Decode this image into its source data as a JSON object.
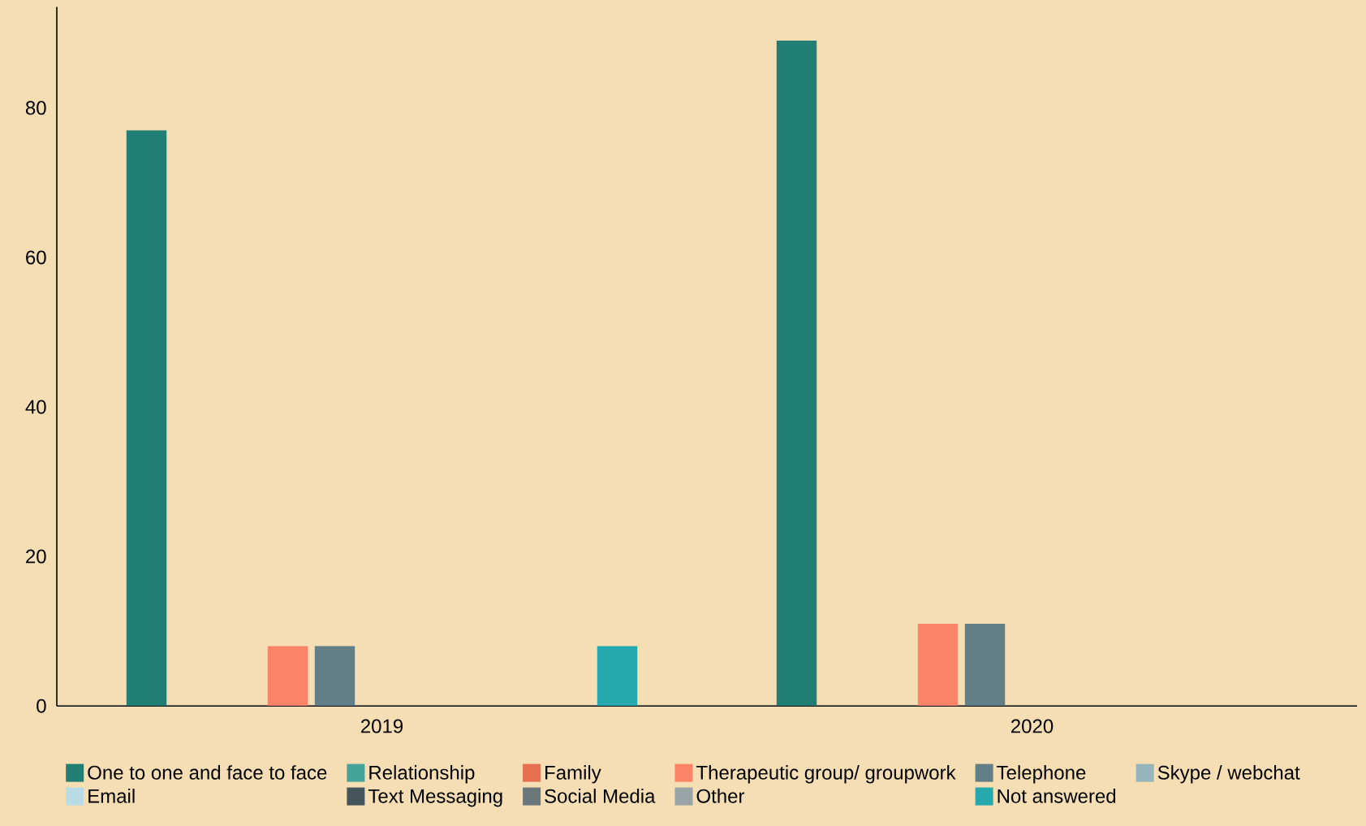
{
  "chart_data": {
    "type": "bar",
    "categories": [
      "2019",
      "2020"
    ],
    "series": [
      {
        "name": "One to one and face to face",
        "color": "#207e74",
        "values": [
          77,
          89
        ]
      },
      {
        "name": "Relationship",
        "color": "#45a39a",
        "values": [
          0,
          0
        ]
      },
      {
        "name": "Family",
        "color": "#e76f51",
        "values": [
          0,
          0
        ]
      },
      {
        "name": "Therapeutic group/ groupwork",
        "color": "#fb8468",
        "values": [
          8,
          11
        ]
      },
      {
        "name": "Telephone",
        "color": "#627f87",
        "values": [
          8,
          11
        ]
      },
      {
        "name": "Skype / webchat",
        "color": "#96b4bb",
        "values": [
          0,
          0
        ]
      },
      {
        "name": "Email",
        "color": "#b8dbe5",
        "values": [
          0,
          0
        ]
      },
      {
        "name": "Text Messaging",
        "color": "#46555c",
        "values": [
          0,
          0
        ]
      },
      {
        "name": "Social Media",
        "color": "#6c777b",
        "values": [
          0,
          0
        ]
      },
      {
        "name": "Other",
        "color": "#9aa4a6",
        "values": [
          0,
          0
        ]
      },
      {
        "name": "Not answered",
        "color": "#26a9ae",
        "values": [
          8,
          0
        ]
      }
    ],
    "ylim": [
      0,
      93.5
    ],
    "yticks": [
      0,
      20,
      40,
      60,
      80
    ],
    "grid": false,
    "legend": "bottom"
  }
}
